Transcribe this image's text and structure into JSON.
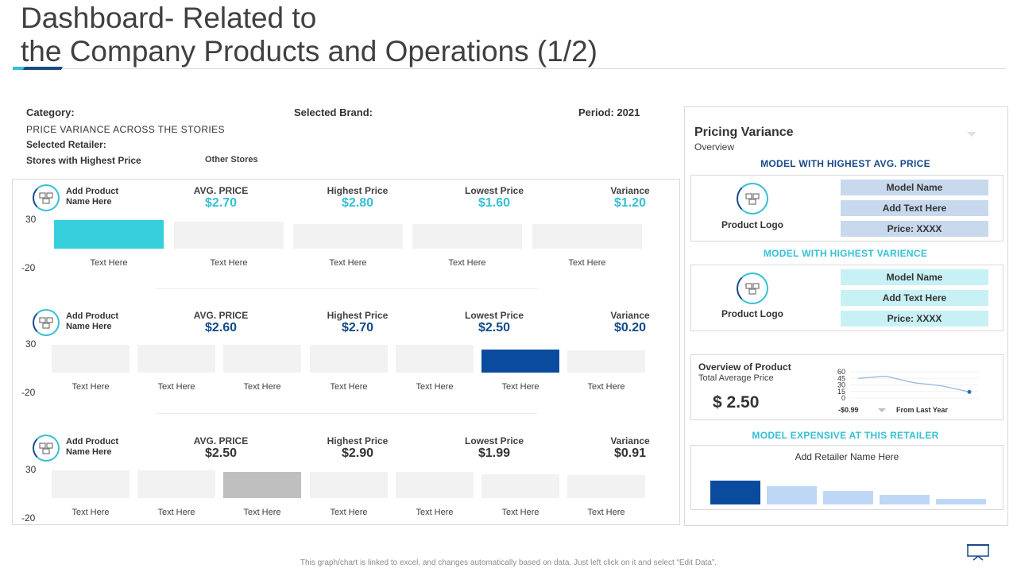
{
  "title": {
    "line1": "Dashboard- Related to",
    "line2": "the Company Products and Operations (1/2)"
  },
  "filters": {
    "category_label": "Category:",
    "category_value": "PRICE VARIANCE  ACROSS  THE STORIES",
    "brand_label": "Selected Brand:",
    "period_label": "Period: 2021",
    "retailer_label": "Selected Retailer:",
    "stores_highest": "Stores with Highest Price",
    "other_stores": "Other Stores"
  },
  "columns": {
    "avg": "AVG.  PRICE",
    "high": "Highest Price",
    "low": "Lowest Price",
    "var": "Variance"
  },
  "axis": {
    "top": "30",
    "bottom": "-20"
  },
  "bar_label": "Text Here",
  "rows": [
    {
      "product": "Add Product Name Here",
      "avg": "$2.70",
      "high": "$2.80",
      "low": "$1.60",
      "var": "$1.20",
      "value_color": "#35c0d6",
      "bars": [
        {
          "value": 30,
          "highlight": "#35d0dc"
        },
        {
          "value": 28
        },
        {
          "value": 26
        },
        {
          "value": 26
        },
        {
          "value": 26
        }
      ]
    },
    {
      "product": "Add Product Name Here",
      "avg": "$2.60",
      "high": "$2.70",
      "low": "$2.50",
      "var": "$0.20",
      "value_color": "#0f4a8a",
      "bars": [
        {
          "value": 30
        },
        {
          "value": 30
        },
        {
          "value": 30
        },
        {
          "value": 30
        },
        {
          "value": 30
        },
        {
          "value": 25,
          "highlight": "#0a4b9e"
        },
        {
          "value": 24
        }
      ]
    },
    {
      "product": "Add Product Name Here",
      "avg": "$2.50",
      "high": "$2.90",
      "low": "$1.99",
      "var": "$0.91",
      "value_color": "#333333",
      "bars": [
        {
          "value": 30
        },
        {
          "value": 30
        },
        {
          "value": 28,
          "highlight": "#bfbfbf"
        },
        {
          "value": 28
        },
        {
          "value": 28
        },
        {
          "value": 26
        },
        {
          "value": 25
        }
      ]
    }
  ],
  "right": {
    "pricing_title": "Pricing Variance",
    "pricing_sub": "Overview",
    "highest_avg_title": "MODEL WITH HIGHEST  AVG.  PRICE",
    "highest_var_title": "MODEL  WITH  HIGHEST  VARIENCE",
    "expensive_title": "MODEL  EXPENSIVE  AT THIS RETAILER",
    "product_logo": "Product Logo",
    "model_name": "Model Name",
    "add_text": "Add Text Here",
    "price": "Price: XXXX",
    "overview_title": "Overview of Product",
    "overview_sub": "Total Average Price",
    "overview_value": "$ 2.50",
    "change": "-$0.99",
    "from_last_year": "From Last Year",
    "retailer": "Add Retailer Name Here",
    "sparkline": {
      "y_ticks": [
        "60",
        "45",
        "30",
        "15",
        "0"
      ],
      "values": [
        45,
        50,
        35,
        28,
        14
      ]
    },
    "retailer_bars": [
      {
        "value": 100,
        "color": "#0a4b9e"
      },
      {
        "value": 78,
        "color": "#bdd7f5"
      },
      {
        "value": 58,
        "color": "#bdd7f5"
      },
      {
        "value": 40,
        "color": "#bdd7f5"
      },
      {
        "value": 22,
        "color": "#bdd7f5"
      }
    ]
  },
  "footer": "This graph/chart is linked to excel, and changes automatically based on data. Just left click on it and select “Edit Data”."
}
